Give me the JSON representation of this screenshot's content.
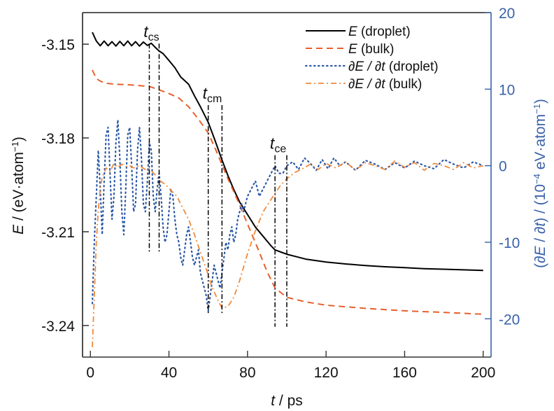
{
  "chart_data": {
    "type": "line",
    "title": "",
    "xlabel": {
      "var": "t",
      "unit": " / ps"
    },
    "ylabel_left": {
      "var": "E",
      "text": " / (eV·atom",
      "sup": "−1",
      "close": ")"
    },
    "ylabel_right": {
      "open": "(∂",
      "var1": "E",
      "mid": " / ∂",
      "var2": "t",
      "text": ") / (10",
      "sup1": "−4",
      "text2": " eV·atom",
      "sup2": "−1",
      "close": ")"
    },
    "xlim": [
      -4,
      204
    ],
    "ylim_left": [
      -3.2501,
      -3.1399
    ],
    "ylim_right": [
      -25.0,
      20.0
    ],
    "x_ticks": [
      0,
      40,
      80,
      120,
      160,
      200
    ],
    "x_tick_labels": [
      "0",
      "40",
      "80",
      "120",
      "160",
      "200"
    ],
    "y_left_ticks": [
      -3.15,
      -3.18,
      -3.21,
      -3.24
    ],
    "y_left_tick_labels": [
      "-3.15",
      "-3.18",
      "-3.21",
      "-3.24"
    ],
    "y_right_ticks": [
      20,
      10,
      0,
      -10,
      -20
    ],
    "y_right_tick_labels": [
      "20",
      "10",
      "0",
      "-10",
      "-20"
    ],
    "grid": false,
    "legend_position": "top-right",
    "colors": {
      "axis_left": "#222222",
      "axis_right": "#3a62a8",
      "e_droplet": "#000000",
      "e_bulk": "#e8602c",
      "dedt_droplet": "#2d5aa6",
      "dedt_bulk": "#f08a3c",
      "markers": "#000000"
    },
    "series": [
      {
        "name": "E (droplet)",
        "legend_var": "E",
        "legend_suffix": " (droplet)",
        "axis": "left",
        "style": "solid",
        "color_key": "e_droplet",
        "x": [
          1,
          3,
          5,
          7,
          9,
          11,
          13,
          15,
          17,
          19,
          21,
          23,
          25,
          27,
          29,
          31,
          33,
          35,
          37,
          40,
          43,
          46,
          50,
          53,
          56,
          60,
          63,
          67,
          70,
          73,
          76,
          80,
          84,
          88,
          92,
          94,
          97,
          100,
          105,
          110,
          120,
          130,
          140,
          150,
          160,
          170,
          180,
          190,
          200
        ],
        "values": [
          -3.1462,
          -3.149,
          -3.1505,
          -3.149,
          -3.1505,
          -3.1492,
          -3.1506,
          -3.1491,
          -3.1505,
          -3.149,
          -3.1505,
          -3.1492,
          -3.1506,
          -3.1493,
          -3.1504,
          -3.1497,
          -3.151,
          -3.1522,
          -3.153,
          -3.1552,
          -3.1575,
          -3.1605,
          -3.1628,
          -3.1665,
          -3.17,
          -3.175,
          -3.18,
          -3.187,
          -3.192,
          -3.1965,
          -3.2005,
          -3.2045,
          -3.2085,
          -3.2115,
          -3.2145,
          -3.2158,
          -3.2165,
          -3.2172,
          -3.218,
          -3.2188,
          -3.2197,
          -3.2203,
          -3.2208,
          -3.2212,
          -3.2215,
          -3.2218,
          -3.222,
          -3.2222,
          -3.2224
        ]
      },
      {
        "name": "E (bulk)",
        "legend_var": "E",
        "legend_suffix": " (bulk)",
        "axis": "left",
        "style": "dashed",
        "color_key": "e_bulk",
        "x": [
          1,
          3,
          5,
          8,
          12,
          20,
          30,
          35,
          40,
          45,
          50,
          55,
          60,
          64,
          67,
          70,
          75,
          80,
          85,
          90,
          94,
          100,
          110,
          120,
          140,
          160,
          180,
          200
        ],
        "values": [
          -3.1583,
          -3.161,
          -3.1618,
          -3.1625,
          -3.1628,
          -3.163,
          -3.1635,
          -3.1646,
          -3.1658,
          -3.1672,
          -3.17,
          -3.174,
          -3.1784,
          -3.184,
          -3.1885,
          -3.193,
          -3.2,
          -3.2075,
          -3.215,
          -3.2228,
          -3.228,
          -3.231,
          -3.2325,
          -3.2335,
          -3.2345,
          -3.2353,
          -3.2358,
          -3.2364
        ]
      },
      {
        "name": "∂E / ∂t (droplet)",
        "legend_var": "∂E / ∂t",
        "legend_suffix": " (droplet)",
        "axis": "right",
        "style": "dotted",
        "color_key": "dedt_droplet",
        "x": [
          1,
          2,
          3,
          4,
          5,
          6,
          7,
          8,
          9,
          10,
          11,
          12,
          13,
          14,
          15,
          16,
          17,
          18,
          19,
          20,
          21,
          22,
          23,
          24,
          25,
          26,
          27,
          28,
          29,
          30,
          31,
          32,
          33,
          34,
          35,
          36,
          37,
          38,
          39,
          40,
          41,
          42,
          43,
          44,
          45,
          46,
          47,
          48,
          49,
          50,
          51,
          52,
          53,
          54,
          55,
          56,
          57,
          58,
          59,
          60,
          61,
          62,
          63,
          64,
          65,
          66,
          67,
          68,
          69,
          70,
          71,
          72,
          73,
          74,
          75,
          76,
          77,
          78,
          79,
          80,
          82,
          84,
          86,
          88,
          90,
          92,
          94,
          96,
          98,
          100,
          103,
          106,
          109,
          112,
          115,
          118,
          121,
          124,
          127,
          130,
          135,
          140,
          145,
          150,
          155,
          160,
          165,
          170,
          175,
          180,
          185,
          190,
          195,
          200
        ],
        "values": [
          -18,
          -10,
          -4,
          2,
          -3,
          -9,
          -2,
          4,
          5,
          -1,
          -7,
          -4,
          3,
          6,
          1,
          -6,
          -9,
          -3,
          4,
          5,
          0,
          -6,
          -5,
          2,
          5,
          1,
          -5,
          -6,
          -2,
          3,
          2,
          -4,
          -6,
          -3,
          -1,
          -4,
          -8,
          -10,
          -9,
          -6,
          -3,
          -4,
          -7,
          -9,
          -10,
          -12,
          -13,
          -11,
          -9,
          -8,
          -10,
          -12,
          -13,
          -12,
          -11,
          -14,
          -15,
          -16,
          -17,
          -19,
          -17,
          -15,
          -13,
          -14,
          -15,
          -16,
          -14,
          -12,
          -10,
          -11,
          -9,
          -8,
          -10,
          -9,
          -7,
          -6,
          -5,
          -6,
          -5,
          -4,
          -3,
          -2,
          -4,
          -3,
          -2,
          -1,
          0,
          -1,
          -1,
          0,
          0.5,
          -0.5,
          1,
          0.3,
          -0.6,
          0.8,
          -0.4,
          1,
          0,
          0.5,
          -0.6,
          0.7,
          0.2,
          -0.5,
          0.4,
          -0.3,
          0.6,
          0,
          -0.4,
          0.8,
          0.2,
          -0.3,
          0.5,
          0
        ]
      },
      {
        "name": "∂E / ∂t (bulk)",
        "legend_var": "∂E / ∂t",
        "legend_suffix": " (bulk)",
        "axis": "right",
        "style": "dashdot",
        "color_key": "dedt_bulk",
        "x": [
          1,
          2,
          3,
          4,
          5,
          6,
          8,
          10,
          12,
          14,
          16,
          18,
          20,
          22,
          25,
          28,
          30,
          33,
          35,
          38,
          41,
          44,
          47,
          50,
          53,
          56,
          59,
          62,
          65,
          67,
          70,
          73,
          76,
          80,
          84,
          88,
          92,
          94,
          97,
          100,
          104,
          108,
          112,
          116,
          120,
          125,
          130,
          135,
          140,
          145,
          150,
          155,
          160,
          165,
          170,
          175,
          180,
          185,
          190,
          195,
          200
        ],
        "values": [
          -23.7,
          -17,
          -10,
          -5.8,
          -3,
          -1.5,
          -0.3,
          -0.8,
          0.3,
          -0.2,
          0.2,
          -0.1,
          0,
          -0.3,
          0,
          -0.5,
          -0.4,
          -1.2,
          -1.9,
          -2.4,
          -3.2,
          -4.0,
          -5.5,
          -7.0,
          -9.0,
          -11.3,
          -13.5,
          -15.9,
          -17.6,
          -18.6,
          -18.4,
          -17.2,
          -15.0,
          -11.5,
          -8.5,
          -6.0,
          -4.4,
          -3.6,
          -2.5,
          -1.7,
          -0.9,
          -0.4,
          0.2,
          -0.5,
          0.3,
          -0.3,
          0.5,
          -0.6,
          0.4,
          0,
          -0.5,
          0.6,
          -0.2,
          0.4,
          -0.6,
          0.3,
          0,
          -0.5,
          0.4,
          -0.3,
          0
        ]
      }
    ],
    "markers": [
      {
        "label_base": "t",
        "label_sub": "cs",
        "t_lines": [
          30,
          35
        ],
        "span_left": [
          -3.1498,
          -3.2164
        ]
      },
      {
        "label_base": "t",
        "label_sub": "cm",
        "t_lines": [
          60,
          67
        ],
        "span_left": [
          -3.1695,
          -3.2366
        ]
      },
      {
        "label_base": "t",
        "label_sub": "ce",
        "t_lines": [
          94,
          100
        ],
        "span_left": [
          -3.1855,
          -3.2404
        ]
      }
    ]
  }
}
